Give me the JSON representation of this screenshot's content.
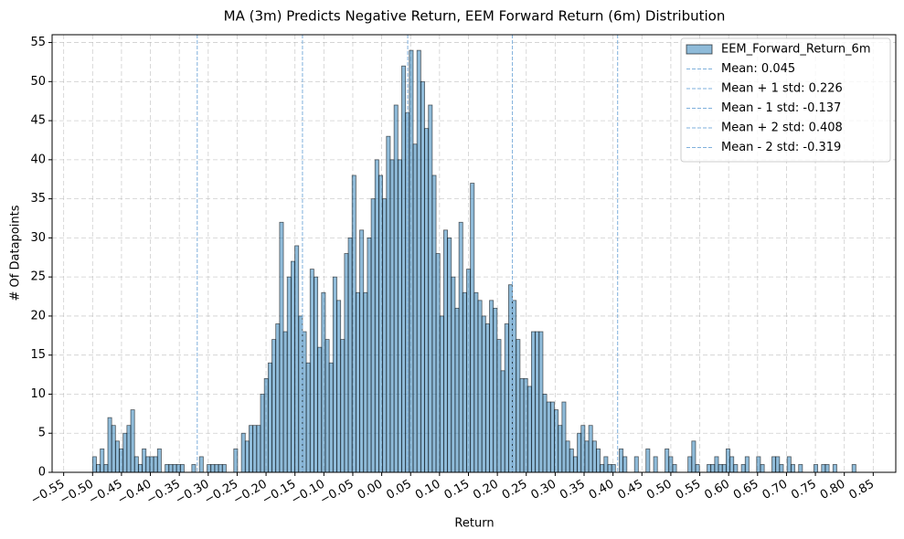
{
  "chart_data": {
    "type": "histogram",
    "title": "MA (3m) Predicts Negative Return, EEM Forward Return (6m) Distribution",
    "x_label": "Return",
    "y_label": "# Of Datapoints",
    "series": [
      {
        "name": "EEM_Forward_Return_6m",
        "color": "#1f77b4",
        "opacity": 0.5,
        "bins": [
          -0.5,
          -0.4934,
          -0.4868,
          -0.4802,
          -0.4736,
          -0.467,
          -0.4604,
          -0.4538,
          -0.4472,
          -0.4406,
          -0.434,
          -0.4274,
          -0.4208,
          -0.4142,
          -0.4076,
          -0.401,
          -0.3944,
          -0.3878,
          -0.3812,
          -0.3746,
          -0.368,
          -0.3614,
          -0.3548,
          -0.3482,
          -0.3416,
          -0.335,
          -0.3284,
          -0.3218,
          -0.3152,
          -0.3086,
          -0.302,
          -0.2954,
          -0.2888,
          -0.2822,
          -0.2756,
          -0.269,
          -0.2624,
          -0.2558,
          -0.2492,
          -0.2426,
          -0.236,
          -0.2294,
          -0.2228,
          -0.2162,
          -0.2096,
          -0.203,
          -0.1964,
          -0.1898,
          -0.1832,
          -0.1766,
          -0.17,
          -0.1634,
          -0.1568,
          -0.1502,
          -0.1436,
          -0.137,
          -0.1304,
          -0.1238,
          -0.1172,
          -0.1106,
          -0.104,
          -0.0974,
          -0.0908,
          -0.0842,
          -0.0776,
          -0.071,
          -0.0644,
          -0.0578,
          -0.0512,
          -0.0446,
          -0.038,
          -0.0314,
          -0.0248,
          -0.0182,
          -0.0116,
          -0.005,
          0.0016,
          0.0082,
          0.0148,
          0.0214,
          0.028,
          0.0346,
          0.0412,
          0.0478,
          0.0544,
          0.061,
          0.0676,
          0.0742,
          0.0808,
          0.0874,
          0.094,
          0.1006,
          0.1072,
          0.1138,
          0.1204,
          0.127,
          0.1336,
          0.1402,
          0.1468,
          0.1534,
          0.16,
          0.1666,
          0.1732,
          0.1798,
          0.1864,
          0.193,
          0.1996,
          0.2062,
          0.2128,
          0.2194,
          0.226,
          0.2326,
          0.2392,
          0.2458,
          0.2524,
          0.259,
          0.2656,
          0.2722,
          0.2788,
          0.2854,
          0.292,
          0.2986,
          0.3052,
          0.3118,
          0.3184,
          0.325,
          0.3316,
          0.3382,
          0.3448,
          0.3514,
          0.358,
          0.3646,
          0.3712,
          0.3778,
          0.3844,
          0.391,
          0.3976,
          0.4042,
          0.4108,
          0.4174,
          0.424,
          0.4306,
          0.4372,
          0.4438,
          0.4504,
          0.457,
          0.4636,
          0.4702,
          0.4768,
          0.4834,
          0.49,
          0.4966,
          0.5032,
          0.5098,
          0.5164,
          0.523,
          0.5296,
          0.5362,
          0.5428,
          0.5494,
          0.556,
          0.5626,
          0.5692,
          0.5758,
          0.5824,
          0.589,
          0.5956,
          0.6022,
          0.6088,
          0.6154,
          0.622,
          0.6286,
          0.6352,
          0.6418,
          0.6484,
          0.655,
          0.6616,
          0.6682,
          0.6748,
          0.6814,
          0.688,
          0.6946,
          0.7012,
          0.7078,
          0.7144,
          0.721,
          0.7276,
          0.7342,
          0.7408,
          0.7474,
          0.754,
          0.7606,
          0.7672,
          0.7738,
          0.7804,
          0.787,
          0.7936,
          0.8002,
          0.8068,
          0.8134,
          0.82
        ],
        "values": [
          2,
          1,
          3,
          1,
          7,
          6,
          4,
          3,
          5,
          6,
          8,
          2,
          1,
          3,
          2,
          2,
          2,
          3,
          0,
          1,
          1,
          1,
          1,
          1,
          0,
          0,
          1,
          0,
          2,
          0,
          1,
          1,
          1,
          1,
          1,
          0,
          0,
          3,
          0,
          5,
          4,
          6,
          6,
          6,
          10,
          12,
          14,
          17,
          19,
          32,
          18,
          25,
          27,
          29,
          20,
          18,
          14,
          26,
          25,
          16,
          23,
          17,
          14,
          25,
          22,
          17,
          28,
          30,
          38,
          23,
          31,
          23,
          30,
          35,
          40,
          38,
          35,
          43,
          40,
          47,
          40,
          52,
          46,
          54,
          42,
          54,
          50,
          44,
          47,
          38,
          28,
          20,
          31,
          30,
          25,
          21,
          32,
          23,
          26,
          37,
          23,
          22,
          20,
          19,
          22,
          21,
          17,
          13,
          19,
          24,
          22,
          17,
          12,
          12,
          11,
          18,
          18,
          18,
          10,
          9,
          9,
          8,
          6,
          9,
          4,
          3,
          2,
          5,
          6,
          4,
          6,
          4,
          3,
          1,
          2,
          1,
          1,
          0,
          3,
          2,
          0,
          0,
          2,
          0,
          0,
          3,
          0,
          2,
          0,
          0,
          3,
          2,
          1,
          0,
          0,
          0,
          2,
          4,
          1,
          0,
          0,
          1,
          1,
          2,
          1,
          1,
          3,
          2,
          1,
          0,
          1,
          2,
          0,
          0,
          2,
          1,
          0,
          0,
          2,
          2,
          1,
          0,
          2,
          1,
          0,
          1,
          0,
          0,
          0,
          1,
          0,
          1,
          1,
          0,
          1,
          0,
          0,
          0,
          0,
          1
        ]
      }
    ],
    "vlines": [
      {
        "label": "Mean: 0.045",
        "value": 0.045
      },
      {
        "label": "Mean + 1 std: 0.226",
        "value": 0.226
      },
      {
        "label": "Mean - 1 std: -0.137",
        "value": -0.137
      },
      {
        "label": "Mean + 2 std: 0.408",
        "value": 0.408
      },
      {
        "label": "Mean - 2 std: -0.319",
        "value": -0.319
      }
    ],
    "vline_color": "#7fb0dc",
    "xlim": [
      -0.57,
      0.889
    ],
    "ylim": [
      0,
      56
    ],
    "xticks": [
      {
        "value": -0.55,
        "label": "−0.55"
      },
      {
        "value": -0.5,
        "label": "−0.50"
      },
      {
        "value": -0.45,
        "label": "−0.45"
      },
      {
        "value": -0.4,
        "label": "−0.40"
      },
      {
        "value": -0.35,
        "label": "−0.35"
      },
      {
        "value": -0.3,
        "label": "−0.30"
      },
      {
        "value": -0.25,
        "label": "−0.25"
      },
      {
        "value": -0.2,
        "label": "−0.20"
      },
      {
        "value": -0.15,
        "label": "−0.15"
      },
      {
        "value": -0.1,
        "label": "−0.10"
      },
      {
        "value": -0.05,
        "label": "−0.05"
      },
      {
        "value": 0,
        "label": "0.00"
      },
      {
        "value": 0.05,
        "label": "0.05"
      },
      {
        "value": 0.1,
        "label": "0.10"
      },
      {
        "value": 0.15,
        "label": "0.15"
      },
      {
        "value": 0.2,
        "label": "0.20"
      },
      {
        "value": 0.25,
        "label": "0.25"
      },
      {
        "value": 0.3,
        "label": "0.30"
      },
      {
        "value": 0.35,
        "label": "0.35"
      },
      {
        "value": 0.4,
        "label": "0.40"
      },
      {
        "value": 0.45,
        "label": "0.45"
      },
      {
        "value": 0.5,
        "label": "0.50"
      },
      {
        "value": 0.55,
        "label": "0.55"
      },
      {
        "value": 0.6,
        "label": "0.60"
      },
      {
        "value": 0.65,
        "label": "0.65"
      },
      {
        "value": 0.7,
        "label": "0.70"
      },
      {
        "value": 0.75,
        "label": "0.75"
      },
      {
        "value": 0.8,
        "label": "0.80"
      },
      {
        "value": 0.85,
        "label": "0.85"
      }
    ],
    "yticks": [
      0,
      5,
      10,
      15,
      20,
      25,
      30,
      35,
      40,
      45,
      50,
      55
    ],
    "grid": true,
    "legend": "upper right"
  }
}
